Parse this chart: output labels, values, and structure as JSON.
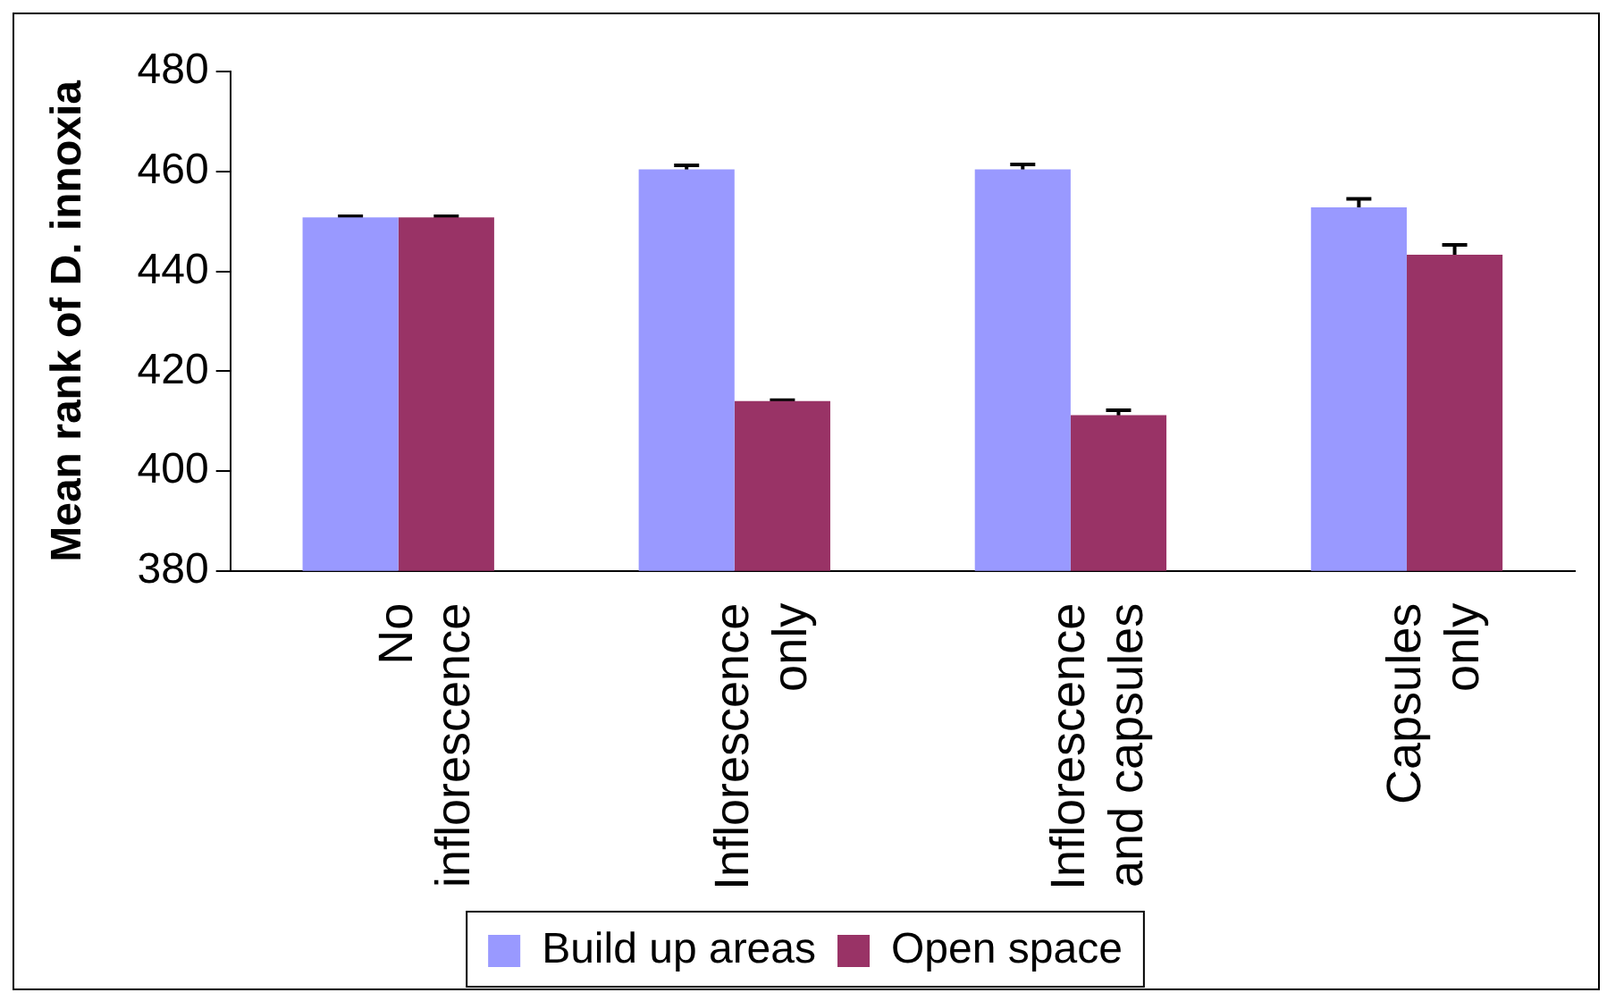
{
  "chart_data": {
    "type": "bar",
    "ylabel": "Mean rank of D. innoxia",
    "categories": [
      "No inflorescence",
      "Inflorescence only",
      "Inflorescence and capsules",
      "Capsules only"
    ],
    "series": [
      {
        "name": "Build up areas",
        "color": "#9999ff",
        "values": [
          450.8,
          460.4,
          460.4,
          452.8
        ],
        "errors": [
          0.2,
          0.8,
          1.0,
          1.7
        ]
      },
      {
        "name": "Open space",
        "color": "#993366",
        "values": [
          450.8,
          414.0,
          411.2,
          443.3
        ],
        "errors": [
          0.2,
          0.2,
          1.0,
          2.0
        ]
      }
    ],
    "ylim": [
      380,
      480
    ],
    "yticks": [
      380,
      400,
      420,
      440,
      460,
      480
    ],
    "grid": false,
    "legend": "bottom"
  }
}
